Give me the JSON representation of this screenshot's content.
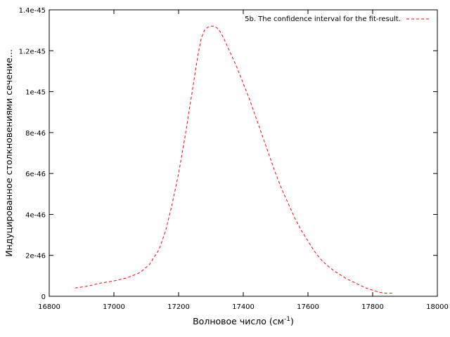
{
  "chart_data": {
    "type": "line",
    "xlabel": "Волновое число (см",
    "xlabel_sup": "-1",
    "xlabel_close": ")",
    "ylabel": "Индуцированное столкновениями сечение...",
    "xlim": [
      16800,
      18000
    ],
    "ylim": [
      0,
      1.4e-45
    ],
    "x_ticks": [
      16800,
      17000,
      17200,
      17400,
      17600,
      17800,
      18000
    ],
    "y_ticks": [
      0,
      2e-46,
      4e-46,
      6e-46,
      8e-46,
      1e-45,
      1.2e-45,
      1.4e-45
    ],
    "x_tick_labels": [
      "16800",
      "17000",
      "17200",
      "17400",
      "17600",
      "17800",
      "18000"
    ],
    "y_tick_labels": [
      "0",
      "2e-46",
      "4e-46",
      "6e-46",
      "8e-46",
      "1e-45",
      "1.2e-45",
      "1.4e-45"
    ],
    "grid": false,
    "legend_position": "top-right",
    "series": [
      {
        "name": "5b. The confidence interval for the fit-result.",
        "color": "#ff0000",
        "style": "dashed",
        "x": [
          16880,
          16920,
          16960,
          17000,
          17040,
          17080,
          17110,
          17140,
          17160,
          17180,
          17200,
          17220,
          17240,
          17260,
          17270,
          17280,
          17290,
          17300,
          17310,
          17320,
          17330,
          17340,
          17360,
          17380,
          17400,
          17420,
          17440,
          17460,
          17480,
          17500,
          17520,
          17540,
          17560,
          17580,
          17600,
          17620,
          17640,
          17660,
          17680,
          17700,
          17720,
          17740,
          17760,
          17780,
          17800,
          17820,
          17840,
          17860
        ],
        "y": [
          4e-47,
          5e-47,
          6.5e-47,
          7.5e-47,
          9e-47,
          1.15e-46,
          1.55e-46,
          2.3e-46,
          3.2e-46,
          4.5e-46,
          6e-46,
          7.8e-46,
          9.8e-46,
          1.18e-45,
          1.26e-45,
          1.3e-45,
          1.315e-45,
          1.32e-45,
          1.32e-45,
          1.31e-45,
          1.29e-45,
          1.26e-45,
          1.19e-45,
          1.12e-45,
          1.04e-45,
          9.6e-46,
          8.7e-46,
          7.8e-46,
          6.9e-46,
          6e-46,
          5.2e-46,
          4.5e-46,
          3.8e-46,
          3.2e-46,
          2.7e-46,
          2.2e-46,
          1.8e-46,
          1.5e-46,
          1.25e-46,
          1.05e-46,
          8.5e-47,
          7e-47,
          5.5e-47,
          4e-47,
          3e-47,
          2e-47,
          1.5e-47,
          1.5e-47
        ]
      }
    ]
  }
}
